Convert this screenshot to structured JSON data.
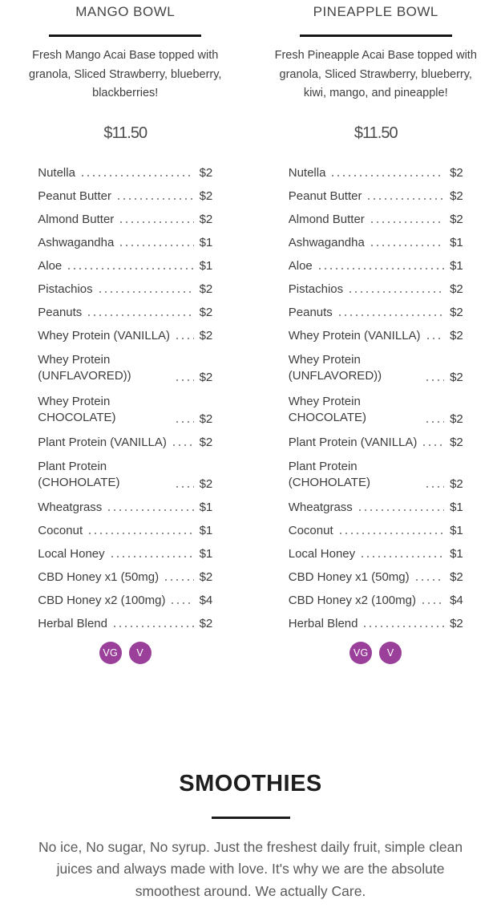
{
  "colors": {
    "badge_purple": "#9a3f9a",
    "rule_black": "#171717",
    "text_dark": "#3d3d3d"
  },
  "columns": [
    {
      "title": "MANGO BOWL",
      "description": "Fresh Mango Acai Base topped with\ngranola, Sliced Strawberry, blueberry,\nblackberries!",
      "price": "$11.50",
      "badges": [
        "VG",
        "V"
      ],
      "addons": [
        {
          "label": "Nutella",
          "price": "$2"
        },
        {
          "label": "Peanut Butter",
          "price": "$2"
        },
        {
          "label": "Almond Butter",
          "price": "$2"
        },
        {
          "label": "Ashwagandha",
          "price": "$1"
        },
        {
          "label": "Aloe",
          "price": "$1"
        },
        {
          "label": "Pistachios",
          "price": "$2"
        },
        {
          "label": "Peanuts",
          "price": "$2"
        },
        {
          "label": "Whey Protein (VANILLA)",
          "price": "$2"
        },
        {
          "label": "Whey Protein\n(UNFLAVORED))",
          "price": "$2"
        },
        {
          "label": "Whey Protein\nCHOCOLATE)",
          "price": "$2"
        },
        {
          "label": "Plant Protein (VANILLA)",
          "price": "$2"
        },
        {
          "label": "Plant Protein\n(CHOHOLATE)",
          "price": "$2"
        },
        {
          "label": "Wheatgrass",
          "price": "$1"
        },
        {
          "label": "Coconut",
          "price": "$1"
        },
        {
          "label": "Local Honey",
          "price": "$1"
        },
        {
          "label": "CBD Honey x1 (50mg)",
          "price": "$2"
        },
        {
          "label": "CBD Honey x2 (100mg)",
          "price": "$4"
        },
        {
          "label": "Herbal Blend",
          "price": "$2"
        }
      ]
    },
    {
      "title": "PINEAPPLE BOWL",
      "description": "Fresh Pineapple Acai Base topped with\ngranola, Sliced Strawberry, blueberry,\nkiwi, mango, and pineapple!",
      "price": "$11.50",
      "badges": [
        "VG",
        "V"
      ],
      "addons": [
        {
          "label": "Nutella",
          "price": "$2"
        },
        {
          "label": "Peanut Butter",
          "price": "$2"
        },
        {
          "label": "Almond Butter",
          "price": "$2"
        },
        {
          "label": "Ashwagandha",
          "price": "$1"
        },
        {
          "label": "Aloe",
          "price": "$1"
        },
        {
          "label": "Pistachios",
          "price": "$2"
        },
        {
          "label": "Peanuts",
          "price": "$2"
        },
        {
          "label": "Whey Protein (VANILLA)",
          "price": "$2"
        },
        {
          "label": "Whey Protein\n(UNFLAVORED))",
          "price": "$2"
        },
        {
          "label": "Whey Protein\nCHOCOLATE)",
          "price": "$2"
        },
        {
          "label": "Plant Protein (VANILLA)",
          "price": "$2"
        },
        {
          "label": "Plant Protein\n(CHOHOLATE)",
          "price": "$2"
        },
        {
          "label": "Wheatgrass",
          "price": "$1"
        },
        {
          "label": "Coconut",
          "price": "$1"
        },
        {
          "label": "Local Honey",
          "price": "$1"
        },
        {
          "label": "CBD Honey x1 (50mg)",
          "price": "$2"
        },
        {
          "label": "CBD Honey x2 (100mg)",
          "price": "$4"
        },
        {
          "label": "Herbal Blend",
          "price": "$2"
        }
      ]
    }
  ],
  "smoothies": {
    "title": "SMOOTHIES",
    "description": "No ice, No sugar, No syrup. Just the freshest daily fruit, simple clean\njuices and always made with love. It's why we are the absolute\nsmoothest around. We actually Care."
  }
}
